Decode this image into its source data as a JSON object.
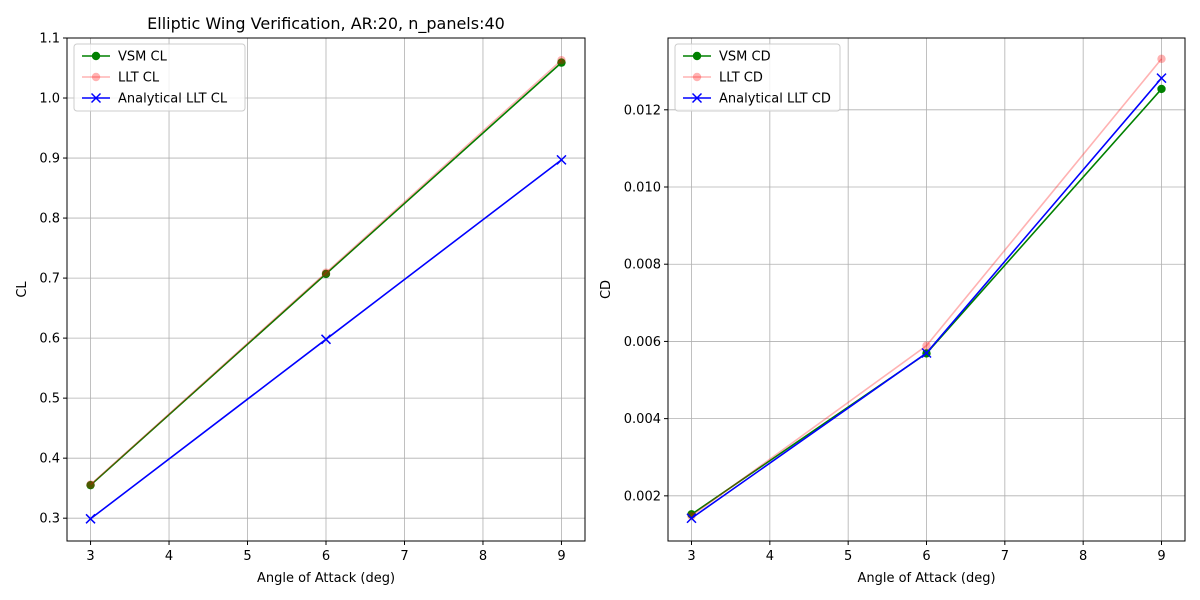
{
  "chart_data": [
    {
      "type": "line",
      "title": "Elliptic Wing Verification, AR:20, n_panels:40",
      "xlabel": "Angle of Attack (deg)",
      "ylabel": "CL",
      "x": [
        3,
        6,
        9
      ],
      "xlim": [
        2.7,
        9.3
      ],
      "ylim": [
        0.262,
        1.1
      ],
      "xticks": [
        3,
        4,
        5,
        6,
        7,
        8,
        9
      ],
      "xtick_labels": [
        "3",
        "4",
        "5",
        "6",
        "7",
        "8",
        "9"
      ],
      "yticks": [
        0.3,
        0.4,
        0.5,
        0.6,
        0.7,
        0.8,
        0.9,
        1.0,
        1.1
      ],
      "ytick_labels": [
        "0.3",
        "0.4",
        "0.5",
        "0.6",
        "0.7",
        "0.8",
        "0.9",
        "1.0",
        "1.1"
      ],
      "grid": true,
      "legend_position": "top-left",
      "series": [
        {
          "name": "VSM CL",
          "values": [
            0.355,
            0.707,
            1.059
          ],
          "color": "#008000",
          "marker": "circle",
          "opacity": 1
        },
        {
          "name": "LLT CL",
          "values": [
            0.356,
            0.709,
            1.063
          ],
          "color": "#ff0000",
          "marker": "circle",
          "opacity": 0.3
        },
        {
          "name": "Analytical LLT CL",
          "values": [
            0.299,
            0.598,
            0.897
          ],
          "color": "#0000ff",
          "marker": "x",
          "opacity": 1
        }
      ]
    },
    {
      "type": "line",
      "title": "",
      "xlabel": "Angle of Attack (deg)",
      "ylabel": "CD",
      "x": [
        3,
        6,
        9
      ],
      "xlim": [
        2.7,
        9.3
      ],
      "ylim": [
        0.00083,
        0.01386
      ],
      "xticks": [
        3,
        4,
        5,
        6,
        7,
        8,
        9
      ],
      "xtick_labels": [
        "3",
        "4",
        "5",
        "6",
        "7",
        "8",
        "9"
      ],
      "yticks": [
        0.002,
        0.004,
        0.006,
        0.008,
        0.01,
        0.012
      ],
      "ytick_labels": [
        "0.002",
        "0.004",
        "0.006",
        "0.008",
        "0.010",
        "0.012"
      ],
      "grid": true,
      "legend_position": "top-left",
      "series": [
        {
          "name": "VSM CD",
          "values": [
            0.00152,
            0.00569,
            0.01254
          ],
          "color": "#008000",
          "marker": "circle",
          "opacity": 1
        },
        {
          "name": "LLT CD",
          "values": [
            0.00148,
            0.00589,
            0.01332
          ],
          "color": "#ff0000",
          "marker": "circle",
          "opacity": 0.3
        },
        {
          "name": "Analytical LLT CD",
          "values": [
            0.00142,
            0.0057,
            0.01282
          ],
          "color": "#0000ff",
          "marker": "x",
          "opacity": 1
        }
      ]
    }
  ]
}
